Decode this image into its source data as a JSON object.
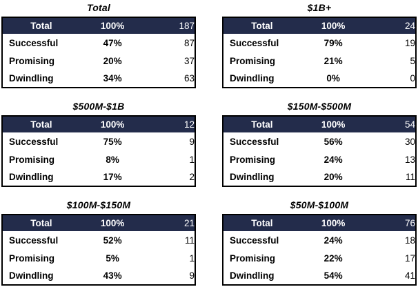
{
  "report": {
    "description": "Six summary tables of outcome distribution by company size band",
    "row_categories": [
      "Total",
      "Successful",
      "Promising",
      "Dwindling"
    ]
  },
  "colors": {
    "header_bg": "#232c4b",
    "header_text": "#ffffff",
    "body_text": "#000000",
    "border": "#000000",
    "background": "#ffffff"
  },
  "chart_data": [
    {
      "type": "table",
      "title": "Total",
      "columns": [
        "category",
        "percent",
        "count"
      ],
      "rows": [
        [
          "Total",
          "100%",
          187
        ],
        [
          "Successful",
          "47%",
          87
        ],
        [
          "Promising",
          "20%",
          37
        ],
        [
          "Dwindling",
          "34%",
          63
        ]
      ]
    },
    {
      "type": "table",
      "title": "$1B+",
      "columns": [
        "category",
        "percent",
        "count"
      ],
      "rows": [
        [
          "Total",
          "100%",
          24
        ],
        [
          "Successful",
          "79%",
          19
        ],
        [
          "Promising",
          "21%",
          5
        ],
        [
          "Dwindling",
          "0%",
          0
        ]
      ]
    },
    {
      "type": "table",
      "title": "$500M-$1B",
      "columns": [
        "category",
        "percent",
        "count"
      ],
      "rows": [
        [
          "Total",
          "100%",
          12
        ],
        [
          "Successful",
          "75%",
          9
        ],
        [
          "Promising",
          "8%",
          1
        ],
        [
          "Dwindling",
          "17%",
          2
        ]
      ]
    },
    {
      "type": "table",
      "title": "$150M-$500M",
      "columns": [
        "category",
        "percent",
        "count"
      ],
      "rows": [
        [
          "Total",
          "100%",
          54
        ],
        [
          "Successful",
          "56%",
          30
        ],
        [
          "Promising",
          "24%",
          13
        ],
        [
          "Dwindling",
          "20%",
          11
        ]
      ]
    },
    {
      "type": "table",
      "title": "$100M-$150M",
      "columns": [
        "category",
        "percent",
        "count"
      ],
      "rows": [
        [
          "Total",
          "100%",
          21
        ],
        [
          "Successful",
          "52%",
          11
        ],
        [
          "Promising",
          "5%",
          1
        ],
        [
          "Dwindling",
          "43%",
          9
        ]
      ]
    },
    {
      "type": "table",
      "title": "$50M-$100M",
      "columns": [
        "category",
        "percent",
        "count"
      ],
      "rows": [
        [
          "Total",
          "100%",
          76
        ],
        [
          "Successful",
          "24%",
          18
        ],
        [
          "Promising",
          "22%",
          17
        ],
        [
          "Dwindling",
          "54%",
          41
        ]
      ]
    }
  ]
}
